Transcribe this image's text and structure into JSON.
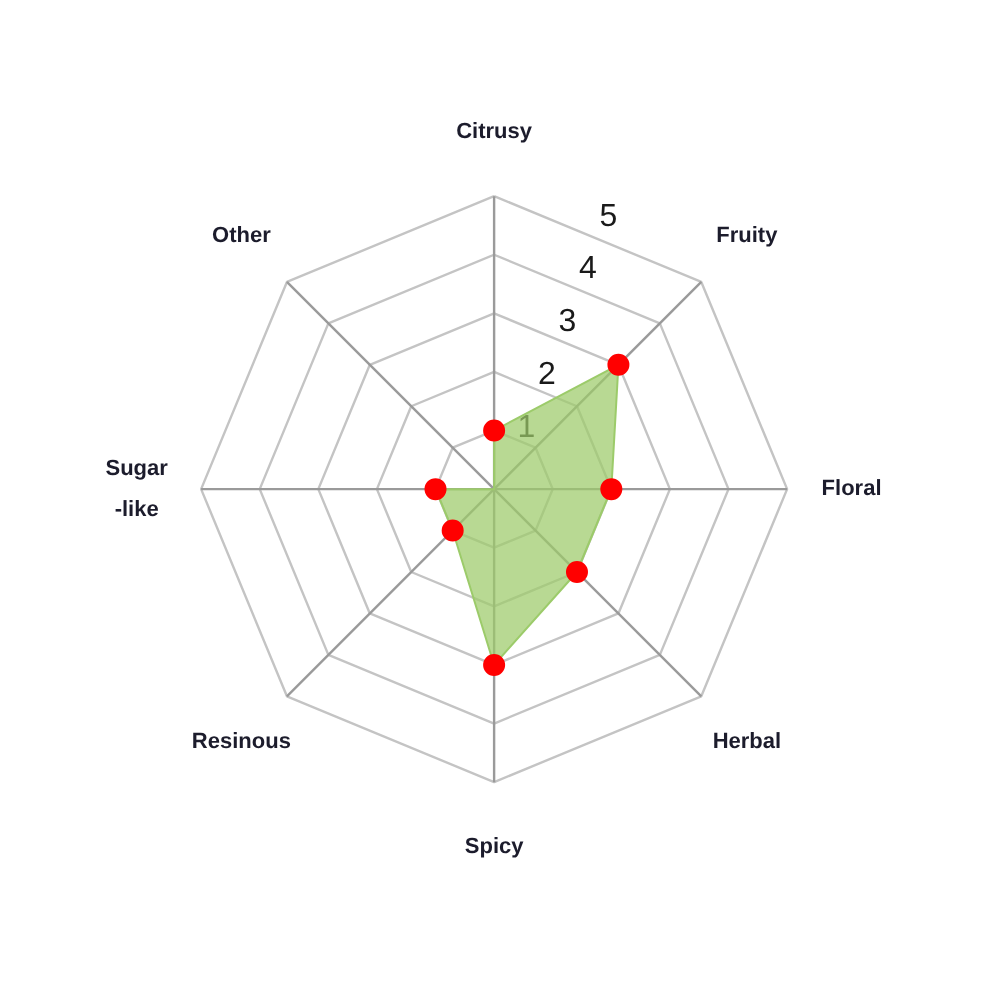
{
  "chart_data": {
    "type": "radar",
    "categories": [
      "Citrusy",
      "Fruity",
      "Floral",
      "Herbal",
      "Spicy",
      "Resinous",
      "Sugar\n-like",
      "Other"
    ],
    "series": [
      {
        "type": "area",
        "color": "#9ccb6a",
        "colors": [
          "#ff0000",
          "#ff0000",
          "#ff0000",
          "#ff0000",
          "#ff0000",
          "#ff0000",
          "#ff0000",
          null
        ],
        "values": [
          1,
          3,
          2,
          2,
          3,
          1,
          1,
          0
        ]
      }
    ],
    "ylim": [
      0,
      5
    ],
    "yticks": [
      1,
      2,
      3,
      4,
      5
    ],
    "grid": true
  }
}
